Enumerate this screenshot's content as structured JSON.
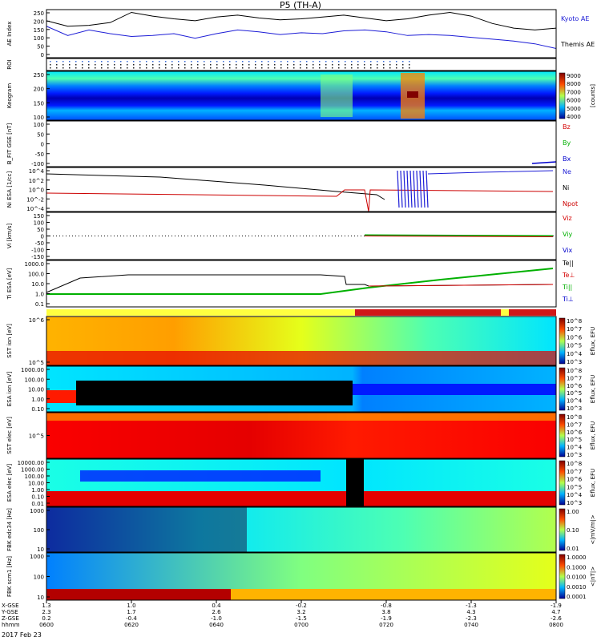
{
  "title": "P5 (TH-A)",
  "date_label": "2017 Feb 23",
  "colors": {
    "kyoto": "#000000",
    "themis": "#1c1cd6",
    "bz": "#d40000",
    "by": "#00b000",
    "bx": "#0000cc",
    "ne": "#1c1cd6",
    "ni": "#000000",
    "npot": "#cc0000",
    "status_yellow": "#ffff40",
    "status_red": "#d01818"
  },
  "ephemeris": {
    "row_labels": [
      "X-GSE",
      "Y-GSE",
      "Z-GSE",
      "hhmm",
      "2017 Feb 23"
    ],
    "x_gse": [
      "1.3",
      "1.0",
      "0.4",
      "-0.2",
      "-0.8",
      "-1.3",
      "-1.9"
    ],
    "y_gse": [
      "2.3",
      "1.7",
      "2.6",
      "3.2",
      "3.8",
      "4.3",
      "4.7"
    ],
    "z_gse": [
      "0.2",
      "-0.4",
      "-1.0",
      "-1.5",
      "-1.9",
      "-2.3",
      "-2.6"
    ],
    "hhmm": [
      "0600",
      "0620",
      "0640",
      "0700",
      "0720",
      "0740",
      "0800"
    ]
  },
  "chart_data": [
    {
      "type": "line",
      "panel": "ae",
      "ylabel": "AE Index",
      "yticks": [
        "250",
        "200",
        "150",
        "100",
        "50",
        "0"
      ],
      "ylim": [
        0,
        260
      ],
      "x_minutes": [
        0,
        5,
        10,
        15,
        20,
        25,
        30,
        35,
        40,
        45,
        50,
        55,
        60,
        65,
        70,
        75,
        80,
        85,
        90,
        95,
        100,
        105,
        110,
        115,
        120
      ],
      "series": [
        {
          "name": "Kyoto AE",
          "values": [
            200,
            170,
            175,
            190,
            245,
            225,
            210,
            200,
            220,
            230,
            215,
            205,
            210,
            220,
            230,
            215,
            200,
            210,
            230,
            245,
            225,
            185,
            160,
            150,
            160
          ]
        },
        {
          "name": "Themis AE",
          "values": [
            170,
            120,
            150,
            130,
            115,
            120,
            130,
            105,
            130,
            150,
            140,
            125,
            135,
            130,
            145,
            150,
            140,
            120,
            125,
            120,
            110,
            100,
            90,
            75,
            50
          ]
        }
      ]
    },
    {
      "type": "heatmap",
      "panel": "roi",
      "ylabel": "ROI"
    },
    {
      "type": "heatmap",
      "panel": "keogram",
      "ylabel": "Keogram",
      "yticks": [
        "250",
        "200",
        "150",
        "100"
      ],
      "colorbar_ticks": [
        "9000",
        "8000",
        "7000",
        "6000",
        "5000",
        "4000"
      ],
      "colorbar_label": "[counts]"
    },
    {
      "type": "line",
      "panel": "bfit",
      "ylabel": "B_FIT GSE [nT]",
      "yticks": [
        "100",
        "50",
        "0",
        "-50",
        "-100"
      ],
      "ylim": [
        -100,
        100
      ],
      "series": [
        {
          "name": "Bz",
          "values": []
        },
        {
          "name": "By",
          "values": []
        },
        {
          "name": "Bx",
          "values": [
            -100,
            -97
          ]
        }
      ]
    },
    {
      "type": "line",
      "panel": "density",
      "ylabel": "Ni ESA [1/cc]",
      "yticks": [
        "10^4",
        "10^2",
        "10^0",
        "10^-2",
        "10^-4"
      ],
      "series": [
        {
          "name": "Ne",
          "values": []
        },
        {
          "name": "Ni",
          "values": []
        },
        {
          "name": "Npot",
          "values": []
        }
      ]
    },
    {
      "type": "line",
      "panel": "velocity",
      "ylabel": "Vi [km/s]",
      "yticks": [
        "150",
        "100",
        "50",
        "0",
        "-50",
        "-100",
        "-150"
      ],
      "ylim": [
        -180,
        180
      ],
      "series": [
        {
          "name": "Viz",
          "values": []
        },
        {
          "name": "Viy",
          "values": []
        },
        {
          "name": "Vix",
          "values": []
        }
      ]
    },
    {
      "type": "line",
      "panel": "temperature",
      "ylabel": "Ti ESA [eV]",
      "yticks": [
        "1000.0",
        "100.0",
        "10.0",
        "1.0",
        "0.1"
      ],
      "series": [
        {
          "name": "Te||",
          "values": []
        },
        {
          "name": "Te⊥",
          "values": []
        },
        {
          "name": "Ti||",
          "values": []
        },
        {
          "name": "Ti⊥",
          "values": []
        }
      ]
    },
    {
      "type": "heatmap",
      "panel": "sst_ion",
      "ylabel": "SST ion [eV]",
      "yticks": [
        "10^6",
        "10^5"
      ],
      "colorbar_ticks": [
        "10^8",
        "10^7",
        "10^6",
        "10^5",
        "10^4",
        "10^3"
      ],
      "colorbar_label": "Eflux, EFU"
    },
    {
      "type": "heatmap",
      "panel": "esa_ion",
      "ylabel": "ESA ion [eV]",
      "yticks": [
        "1000.00",
        "100.00",
        "10.00",
        "1.00",
        "0.10"
      ],
      "colorbar_ticks": [
        "10^8",
        "10^7",
        "10^6",
        "10^5",
        "10^4",
        "10^3"
      ],
      "colorbar_label": "Eflux, EFU"
    },
    {
      "type": "heatmap",
      "panel": "sst_elec",
      "ylabel": "SST elec [eV]",
      "yticks": [
        "10^5"
      ],
      "colorbar_ticks": [
        "10^8",
        "10^7",
        "10^6",
        "10^5",
        "10^4",
        "10^3"
      ],
      "colorbar_label": "Eflux, EFU"
    },
    {
      "type": "heatmap",
      "panel": "esa_elec",
      "ylabel": "ESA elec [eV]",
      "yticks": [
        "10000.00",
        "1000.00",
        "100.00",
        "10.00",
        "1.00",
        "0.10",
        "0.01"
      ],
      "colorbar_ticks": [
        "10^8",
        "10^7",
        "10^6",
        "10^5",
        "10^4",
        "10^3"
      ],
      "colorbar_label": "Eflux, EFU"
    },
    {
      "type": "heatmap",
      "panel": "fbk_e",
      "ylabel": "FBK edc34 [Hz]",
      "yticks": [
        "1000",
        "100",
        "10"
      ],
      "colorbar_ticks": [
        "1.00",
        "0.10",
        "0.01"
      ],
      "colorbar_label": "<|mV/m|>"
    },
    {
      "type": "heatmap",
      "panel": "fbk_b",
      "ylabel": "FBK scm1 [Hz]",
      "yticks": [
        "1000",
        "100",
        "10"
      ],
      "colorbar_ticks": [
        "1.0000",
        "0.1000",
        "0.0100",
        "0.0010",
        "0.0001"
      ],
      "colorbar_label": "<|nT|>"
    }
  ]
}
